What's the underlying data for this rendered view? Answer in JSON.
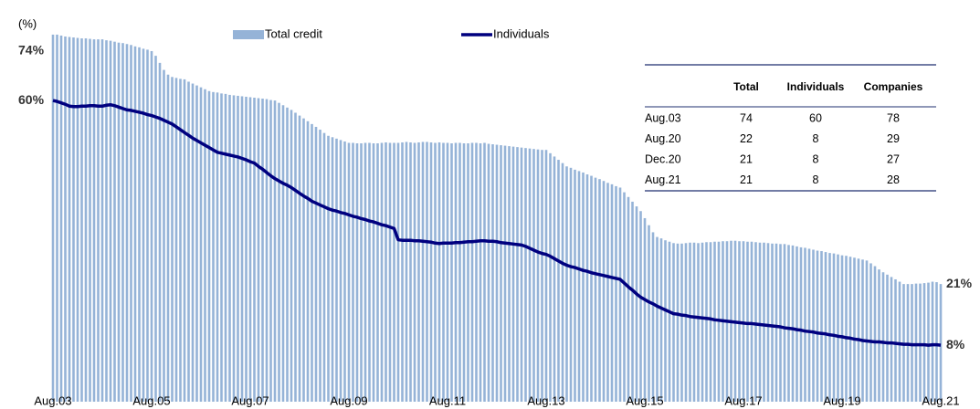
{
  "chart_data": {
    "type": "bar_line",
    "ylabel": "(%)",
    "legend": "top",
    "ylim": [
      -4,
      80
    ],
    "categories": [
      "Aug.03",
      null,
      null,
      null,
      null,
      null,
      null,
      null,
      null,
      null,
      null,
      null,
      null,
      null,
      null,
      null,
      null,
      null,
      null,
      null,
      null,
      null,
      null,
      null,
      "Aug.05",
      null,
      null,
      null,
      null,
      null,
      null,
      null,
      null,
      null,
      null,
      null,
      null,
      null,
      null,
      null,
      null,
      null,
      null,
      null,
      null,
      null,
      null,
      null,
      "Aug.07",
      null,
      null,
      null,
      null,
      null,
      null,
      null,
      null,
      null,
      null,
      null,
      null,
      null,
      null,
      null,
      null,
      null,
      null,
      null,
      null,
      null,
      null,
      null,
      "Aug.09",
      null,
      null,
      null,
      null,
      null,
      null,
      null,
      null,
      null,
      null,
      null,
      null,
      null,
      null,
      null,
      null,
      null,
      null,
      null,
      null,
      null,
      null,
      null,
      "Aug.11",
      null,
      null,
      null,
      null,
      null,
      null,
      null,
      null,
      null,
      null,
      null,
      null,
      null,
      null,
      null,
      null,
      null,
      null,
      null,
      null,
      null,
      null,
      null,
      "Aug.13",
      null,
      null,
      null,
      null,
      null,
      null,
      null,
      null,
      null,
      null,
      null,
      null,
      null,
      null,
      null,
      null,
      null,
      null,
      null,
      null,
      null,
      null,
      null,
      "Aug.15",
      null,
      null,
      null,
      null,
      null,
      null,
      null,
      null,
      null,
      null,
      null,
      null,
      null,
      null,
      null,
      null,
      null,
      null,
      null,
      null,
      null,
      null,
      null,
      "Aug.17",
      null,
      null,
      null,
      null,
      null,
      null,
      null,
      null,
      null,
      null,
      null,
      null,
      null,
      null,
      null,
      null,
      null,
      null,
      null,
      null,
      null,
      null,
      null,
      "Aug.19",
      null,
      null,
      null,
      null,
      null,
      null,
      null,
      null,
      null,
      null,
      null,
      null,
      null,
      null,
      null,
      null,
      null,
      null,
      null,
      null,
      null,
      null,
      null,
      "Aug.21"
    ],
    "series": [
      {
        "name": "Total credit",
        "kind": "bar",
        "color": "#95b3d7",
        "values": [
          74,
          74,
          73.8,
          73.6,
          73.5,
          73.4,
          73.3,
          73.2,
          73.2,
          73.1,
          73,
          73,
          73,
          72.8,
          72.7,
          72.5,
          72.3,
          72.2,
          72,
          71.8,
          71.5,
          71.3,
          71,
          70.8,
          70.5,
          69.5,
          68,
          66.5,
          65.5,
          65,
          64.8,
          64.6,
          64.5,
          64,
          63.6,
          63.2,
          62.8,
          62.4,
          62,
          61.8,
          61.7,
          61.5,
          61.4,
          61.2,
          61.1,
          61,
          60.9,
          60.8,
          60.7,
          60.6,
          60.5,
          60.4,
          60.3,
          60.1,
          60,
          59.5,
          59,
          58.5,
          58,
          57.4,
          56.8,
          56.2,
          55.6,
          55,
          54.4,
          53.8,
          53.1,
          52.5,
          52.2,
          51.9,
          51.6,
          51.3,
          51,
          51,
          50.9,
          50.9,
          51,
          51,
          50.9,
          50.9,
          51,
          51.1,
          51,
          51,
          51,
          51.1,
          51.2,
          51.1,
          51,
          51.1,
          51.2,
          51.2,
          51.1,
          51,
          51.1,
          51,
          51,
          50.9,
          51,
          51,
          50.9,
          50.9,
          51,
          51,
          50.9,
          51,
          50.8,
          50.7,
          50.6,
          50.5,
          50.4,
          50.3,
          50.2,
          50.1,
          50,
          49.9,
          49.8,
          49.7,
          49.6,
          49.5,
          49.5,
          48.8,
          48.1,
          47.4,
          46.7,
          46,
          45.7,
          45.3,
          45,
          44.7,
          44.3,
          44,
          43.6,
          43.3,
          42.9,
          42.5,
          42.2,
          41.8,
          41.5,
          40.5,
          39.5,
          38.5,
          37.5,
          36.5,
          35,
          33.5,
          32,
          31,
          30.7,
          30.3,
          30,
          29.7,
          29.6,
          29.6,
          29.7,
          29.8,
          29.8,
          29.7,
          29.8,
          29.9,
          29.9,
          30,
          30,
          30.1,
          30.1,
          30.2,
          30.2,
          30.1,
          30.1,
          30,
          30,
          29.9,
          29.8,
          29.8,
          29.7,
          29.6,
          29.6,
          29.5,
          29.5,
          29.3,
          29.2,
          29,
          28.8,
          28.7,
          28.5,
          28.3,
          28.1,
          28,
          27.8,
          27.6,
          27.5,
          27.3,
          27.1,
          27,
          26.8,
          26.6,
          26.4,
          26.2,
          26,
          25.4,
          24.8,
          24.1,
          23.5,
          23,
          22.5,
          22,
          21.5,
          21,
          21,
          21,
          21.1,
          21.1,
          21.2,
          21.3,
          21.5,
          21.4,
          21
        ],
        "value_labels": {
          "0": "74%",
          "216": "21%"
        }
      },
      {
        "name": "Individuals",
        "kind": "line",
        "color": "#00007f",
        "values": [
          60,
          59.8,
          59.5,
          59.2,
          58.8,
          58.7,
          58.7,
          58.8,
          58.8,
          58.9,
          58.9,
          58.8,
          58.8,
          59,
          59.1,
          58.9,
          58.6,
          58.3,
          58,
          57.9,
          57.7,
          57.5,
          57.3,
          57,
          56.8,
          56.5,
          56.2,
          55.8,
          55.4,
          55,
          54.4,
          53.8,
          53.2,
          52.6,
          52,
          51.5,
          51,
          50.5,
          50,
          49.5,
          49,
          48.8,
          48.6,
          48.4,
          48.2,
          48,
          47.7,
          47.4,
          47,
          46.7,
          46,
          45.4,
          44.7,
          44,
          43.4,
          42.9,
          42.4,
          42,
          41.5,
          40.9,
          40.3,
          39.7,
          39.2,
          38.6,
          38.2,
          37.8,
          37.4,
          37,
          36.7,
          36.5,
          36.2,
          36,
          35.7,
          35.4,
          35.2,
          34.9,
          34.7,
          34.4,
          34.2,
          33.9,
          33.6,
          33.4,
          33.1,
          32.8,
          30.4,
          30.3,
          30.3,
          30.3,
          30.2,
          30.2,
          30.1,
          30,
          29.9,
          29.7,
          29.6,
          29.7,
          29.7,
          29.7,
          29.8,
          29.8,
          29.9,
          30,
          30,
          30.1,
          30.2,
          30.2,
          30.1,
          30.1,
          30,
          29.8,
          29.7,
          29.6,
          29.5,
          29.4,
          29.3,
          29,
          28.6,
          28.2,
          27.8,
          27.5,
          27.3,
          26.9,
          26.4,
          25.9,
          25.4,
          25,
          24.7,
          24.5,
          24.2,
          23.9,
          23.7,
          23.4,
          23.2,
          23,
          22.8,
          22.6,
          22.4,
          22.2,
          22,
          21.2,
          20.4,
          19.7,
          18.9,
          18.2,
          17.7,
          17.2,
          16.8,
          16.3,
          15.9,
          15.5,
          15.1,
          14.7,
          14.6,
          14.4,
          14.3,
          14.1,
          14,
          13.9,
          13.8,
          13.7,
          13.6,
          13.4,
          13.3,
          13.2,
          13.1,
          13,
          12.9,
          12.8,
          12.7,
          12.6,
          12.6,
          12.5,
          12.4,
          12.3,
          12.2,
          12.1,
          12,
          11.9,
          11.7,
          11.6,
          11.5,
          11.3,
          11.2,
          11,
          10.9,
          10.8,
          10.6,
          10.5,
          10.4,
          10.2,
          10.1,
          9.9,
          9.8,
          9.6,
          9.5,
          9.3,
          9.2,
          9,
          8.9,
          8.8,
          8.7,
          8.7,
          8.6,
          8.5,
          8.5,
          8.4,
          8.3,
          8.2,
          8.2,
          8.1,
          8.1,
          8.1,
          8.1,
          8,
          8.1,
          8.1,
          8
        ],
        "value_labels": {
          "0": "60%",
          "216": "8%"
        }
      }
    ],
    "table": {
      "columns": [
        "Total",
        "Individuals",
        "Companies"
      ],
      "rows": [
        [
          "Aug.03",
          74,
          60,
          78
        ],
        [
          "Aug.20",
          22,
          8,
          29
        ],
        [
          "Dec.20",
          21,
          8,
          27
        ],
        [
          "Aug.21",
          21,
          8,
          28
        ]
      ]
    }
  }
}
